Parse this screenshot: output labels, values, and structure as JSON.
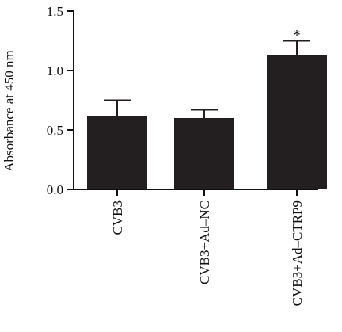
{
  "chart_data": {
    "type": "bar",
    "title": "",
    "xlabel": "",
    "ylabel": "Absorbance at 450 nm",
    "ylim": [
      0,
      1.5
    ],
    "yticks": [
      "0.0",
      "0.5",
      "1.0",
      "1.5"
    ],
    "categories": [
      "CVB3",
      "CVB3+Ad–NC",
      "CVB3+Ad–CTRP9"
    ],
    "values": [
      0.62,
      0.6,
      1.13
    ],
    "errors": [
      0.13,
      0.07,
      0.12
    ],
    "annotations": [
      "",
      "",
      "*"
    ],
    "bar_color": "#231f20",
    "grid": false,
    "legend": "none"
  }
}
